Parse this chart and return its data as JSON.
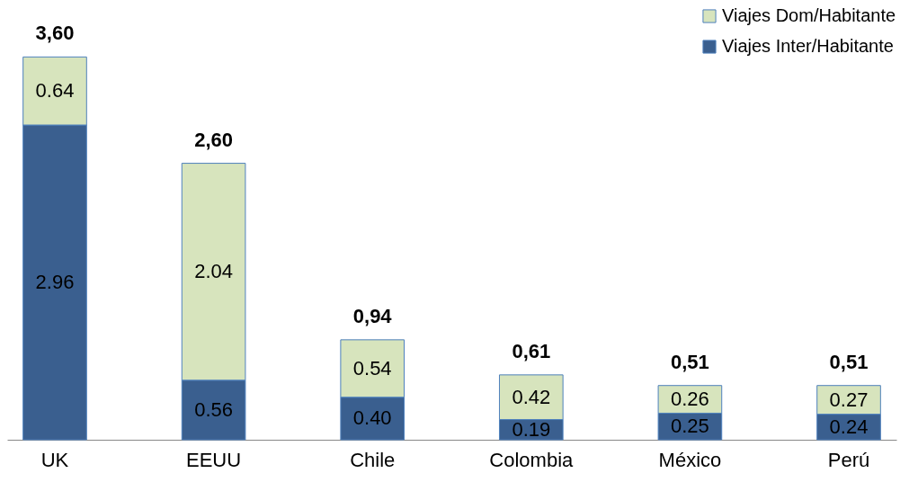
{
  "chart_data": {
    "type": "bar",
    "stacked": true,
    "categories": [
      "UK",
      "EEUU",
      "Chile",
      "Colombia",
      "México",
      "Perú"
    ],
    "series": [
      {
        "name": "Viajes Inter/Habitante",
        "color": "#3a5f8f",
        "values": [
          2.96,
          0.56,
          0.4,
          0.19,
          0.25,
          0.24
        ],
        "value_labels": [
          "2.96",
          "0.56",
          "0.40",
          "0.19",
          "0.25",
          "0.24"
        ]
      },
      {
        "name": "Viajes Dom/Habitante",
        "color": "#d7e4bd",
        "values": [
          0.64,
          2.04,
          0.54,
          0.42,
          0.26,
          0.27
        ],
        "value_labels": [
          "0.64",
          "2.04",
          "0.54",
          "0.42",
          "0.26",
          "0.27"
        ]
      }
    ],
    "totals": [
      "3,60",
      "2,60",
      "0,94",
      "0,61",
      "0,51",
      "0,51"
    ],
    "legend": "top right",
    "tick_labels": "x"
  }
}
